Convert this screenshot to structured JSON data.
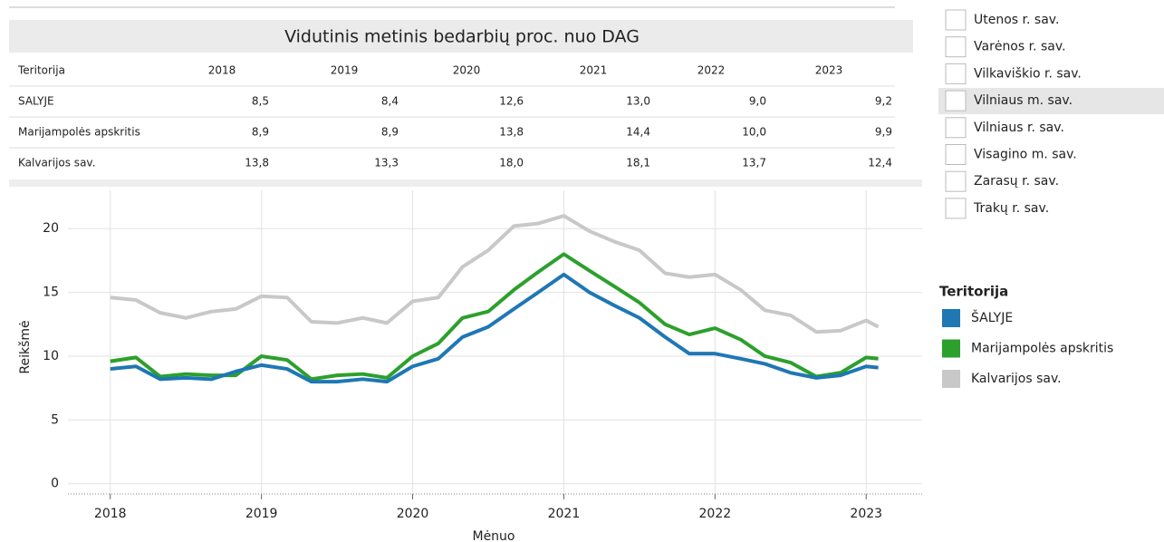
{
  "table": {
    "title": "Vidutinis metinis bedarbių proc. nuo DAG",
    "columns": [
      "Teritorija",
      "2018",
      "2019",
      "2020",
      "2021",
      "2022",
      "2023"
    ],
    "rows": [
      {
        "label": "SALYJE",
        "values": [
          "8,5",
          "8,4",
          "12,6",
          "13,0",
          "9,0",
          "9,2"
        ]
      },
      {
        "label": "Marijampolės apskritis",
        "values": [
          "8,9",
          "8,9",
          "13,8",
          "14,4",
          "10,0",
          "9,9"
        ]
      },
      {
        "label": "Kalvarijos sav.",
        "values": [
          "13,8",
          "13,3",
          "18,0",
          "18,1",
          "13,7",
          "12,4"
        ]
      }
    ]
  },
  "filter": {
    "items": [
      "Utenos r. sav.",
      "Varėnos r. sav.",
      "Vilkaviškio r. sav.",
      "Vilniaus m. sav.",
      "Vilniaus r. sav.",
      "Visagino m. sav.",
      "Zarasų r. sav.",
      "Trakų r. sav."
    ]
  },
  "chart_data": {
    "type": "line",
    "x_label": "Mėnuo",
    "y_label": "Reikšmė",
    "legend_title": "Teritorija",
    "x": [
      2018,
      2018.17,
      2018.33,
      2018.5,
      2018.67,
      2018.83,
      2019,
      2019.17,
      2019.33,
      2019.5,
      2019.67,
      2019.83,
      2020,
      2020.17,
      2020.33,
      2020.5,
      2020.67,
      2020.83,
      2021,
      2021.17,
      2021.33,
      2021.5,
      2021.67,
      2021.83,
      2022,
      2022.17,
      2022.33,
      2022.5,
      2022.67,
      2022.83,
      2023,
      2023.08
    ],
    "series": [
      {
        "name": "Kalvarijos sav.",
        "color": "#c8c8c8",
        "values": [
          14.6,
          14.4,
          13.4,
          13.0,
          13.5,
          13.7,
          14.7,
          14.6,
          12.7,
          12.6,
          13.0,
          12.6,
          14.3,
          14.6,
          17.0,
          18.3,
          20.2,
          20.4,
          21.0,
          19.8,
          19.0,
          18.3,
          16.5,
          16.2,
          16.4,
          15.2,
          13.6,
          13.2,
          11.9,
          12.0,
          12.8,
          12.3
        ]
      },
      {
        "name": "Marijampolės apskritis",
        "color": "#2ca02c",
        "values": [
          9.6,
          9.9,
          8.4,
          8.6,
          8.5,
          8.5,
          10.0,
          9.7,
          8.2,
          8.5,
          8.6,
          8.3,
          10.0,
          11.0,
          13.0,
          13.5,
          15.2,
          16.6,
          18.0,
          16.7,
          15.5,
          14.2,
          12.5,
          11.7,
          12.2,
          11.3,
          10.0,
          9.5,
          8.4,
          8.7,
          9.9,
          9.8
        ]
      },
      {
        "name": "ŠALYJE",
        "color": "#1f77b4",
        "values": [
          9.0,
          9.2,
          8.2,
          8.3,
          8.2,
          8.8,
          9.3,
          9.0,
          8.0,
          8.0,
          8.2,
          8.0,
          9.2,
          9.8,
          11.5,
          12.3,
          13.7,
          15.0,
          16.4,
          15.0,
          14.0,
          13.0,
          11.5,
          10.2,
          10.2,
          9.8,
          9.4,
          8.7,
          8.3,
          8.5,
          9.2,
          9.1
        ]
      }
    ],
    "xlim": [
      2017.72,
      2023.37
    ],
    "ylim": [
      -0.8,
      23
    ],
    "xticks": [
      2018,
      2019,
      2020,
      2021,
      2022,
      2023
    ],
    "yticks": [
      0,
      5,
      10,
      15,
      20
    ],
    "grid": true
  }
}
